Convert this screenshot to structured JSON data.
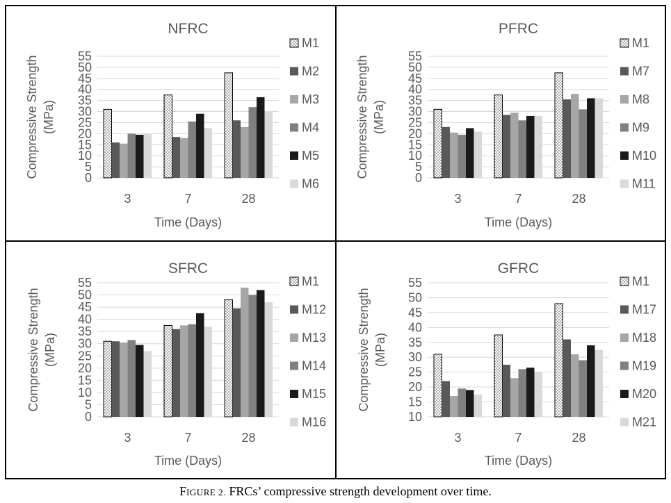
{
  "figure": {
    "caption_label": "FIGURE 2.",
    "caption_label_first": "F",
    "caption_label_rest": "IGURE 2.",
    "caption_text": " FRCs’ compressive strength development over time."
  },
  "chart_data": [
    {
      "type": "bar",
      "title": "NFRC",
      "xlabel": "Time (Days)",
      "ylabel_lines": [
        "Compressive Strength",
        "(MPa)"
      ],
      "categories": [
        "3",
        "7",
        "28"
      ],
      "ylim": [
        0,
        55
      ],
      "yticks": [
        0,
        5,
        10,
        15,
        20,
        25,
        30,
        35,
        40,
        45,
        50,
        55
      ],
      "grid": true,
      "legend": "right",
      "series": [
        {
          "name": "M1",
          "values": [
            31,
            37.5,
            47.5
          ]
        },
        {
          "name": "M2",
          "values": [
            16,
            18.5,
            26
          ]
        },
        {
          "name": "M3",
          "values": [
            15.5,
            18,
            23
          ]
        },
        {
          "name": "M4",
          "values": [
            20,
            25.5,
            32
          ]
        },
        {
          "name": "M5",
          "values": [
            19.5,
            29,
            36.5
          ]
        },
        {
          "name": "M6",
          "values": [
            20,
            22.5,
            30
          ]
        }
      ]
    },
    {
      "type": "bar",
      "title": "PFRC",
      "xlabel": "Time (Days)",
      "ylabel_lines": [
        "Compressive Strength",
        "(MPa)"
      ],
      "categories": [
        "3",
        "7",
        "28"
      ],
      "ylim": [
        0,
        55
      ],
      "yticks": [
        0,
        5,
        10,
        15,
        20,
        25,
        30,
        35,
        40,
        45,
        50,
        55
      ],
      "grid": true,
      "legend": "right",
      "series": [
        {
          "name": "M1",
          "values": [
            31,
            37.5,
            47.5
          ]
        },
        {
          "name": "M7",
          "values": [
            23,
            28.5,
            35.5
          ]
        },
        {
          "name": "M8",
          "values": [
            20.5,
            29.5,
            38
          ]
        },
        {
          "name": "M9",
          "values": [
            19.5,
            26,
            31
          ]
        },
        {
          "name": "M10",
          "values": [
            22.5,
            28,
            36
          ]
        },
        {
          "name": "M11",
          "values": [
            21,
            28,
            36
          ]
        }
      ]
    },
    {
      "type": "bar",
      "title": "SFRC",
      "xlabel": "Time (Days)",
      "ylabel_lines": [
        "Compressive Strength",
        "(MPa)"
      ],
      "categories": [
        "3",
        "7",
        "28"
      ],
      "ylim": [
        0,
        55
      ],
      "yticks": [
        0,
        5,
        10,
        15,
        20,
        25,
        30,
        35,
        40,
        45,
        50,
        55
      ],
      "grid": true,
      "legend": "right",
      "series": [
        {
          "name": "M1",
          "values": [
            31,
            37.5,
            48
          ]
        },
        {
          "name": "M12",
          "values": [
            31,
            36,
            44.5
          ]
        },
        {
          "name": "M13",
          "values": [
            30.5,
            37.5,
            53
          ]
        },
        {
          "name": "M14",
          "values": [
            31.5,
            38,
            50
          ]
        },
        {
          "name": "M15",
          "values": [
            29.5,
            42.5,
            52
          ]
        },
        {
          "name": "M16",
          "values": [
            27,
            37,
            47
          ]
        }
      ]
    },
    {
      "type": "bar",
      "title": "GFRC",
      "xlabel": "Time (Days)",
      "ylabel_lines": [
        "Compressive Strength",
        "(MPa)"
      ],
      "categories": [
        "3",
        "7",
        "28"
      ],
      "ylim": [
        10,
        55
      ],
      "yticks": [
        10,
        15,
        20,
        25,
        30,
        35,
        40,
        45,
        50,
        55
      ],
      "grid": true,
      "legend": "right",
      "series": [
        {
          "name": "M1",
          "values": [
            31,
            37.5,
            48
          ]
        },
        {
          "name": "M17",
          "values": [
            22,
            27.5,
            36
          ]
        },
        {
          "name": "M18",
          "values": [
            17,
            23,
            31
          ]
        },
        {
          "name": "M19",
          "values": [
            19.5,
            26,
            29
          ]
        },
        {
          "name": "M20",
          "values": [
            19,
            26.5,
            34
          ]
        },
        {
          "name": "M21",
          "values": [
            17.5,
            25,
            32.5
          ]
        }
      ]
    }
  ],
  "style": {
    "series_fills": [
      "pattern",
      "#595959",
      "#a6a6a6",
      "#808080",
      "#1a1a1a",
      "#d9d9d9"
    ],
    "gridline_color": "#d9d9d9",
    "text_color": "#595959",
    "frame_color": "#000000"
  }
}
